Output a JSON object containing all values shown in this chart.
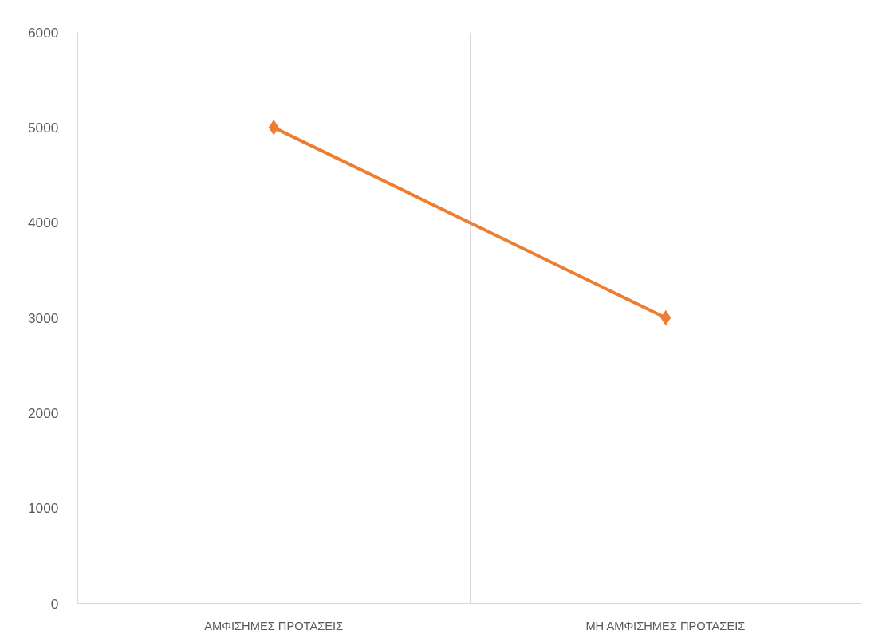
{
  "chart_data": {
    "type": "line",
    "categories": [
      "ΑΜΦΙΣΗΜΕΣ ΠΡΟΤΑΣΕΙΣ",
      "ΜΗ ΑΜΦΙΣΗΜΕΣ ΠΡΟΤΑΣΕΙΣ"
    ],
    "series": [
      {
        "color": "#ed7d31",
        "values": [
          5000,
          3000
        ]
      }
    ],
    "ylim": [
      0,
      6000
    ],
    "yticks": [
      0,
      1000,
      2000,
      3000,
      4000,
      5000,
      6000
    ],
    "grid": "x",
    "marker": "diamond",
    "line_style": "solid"
  }
}
